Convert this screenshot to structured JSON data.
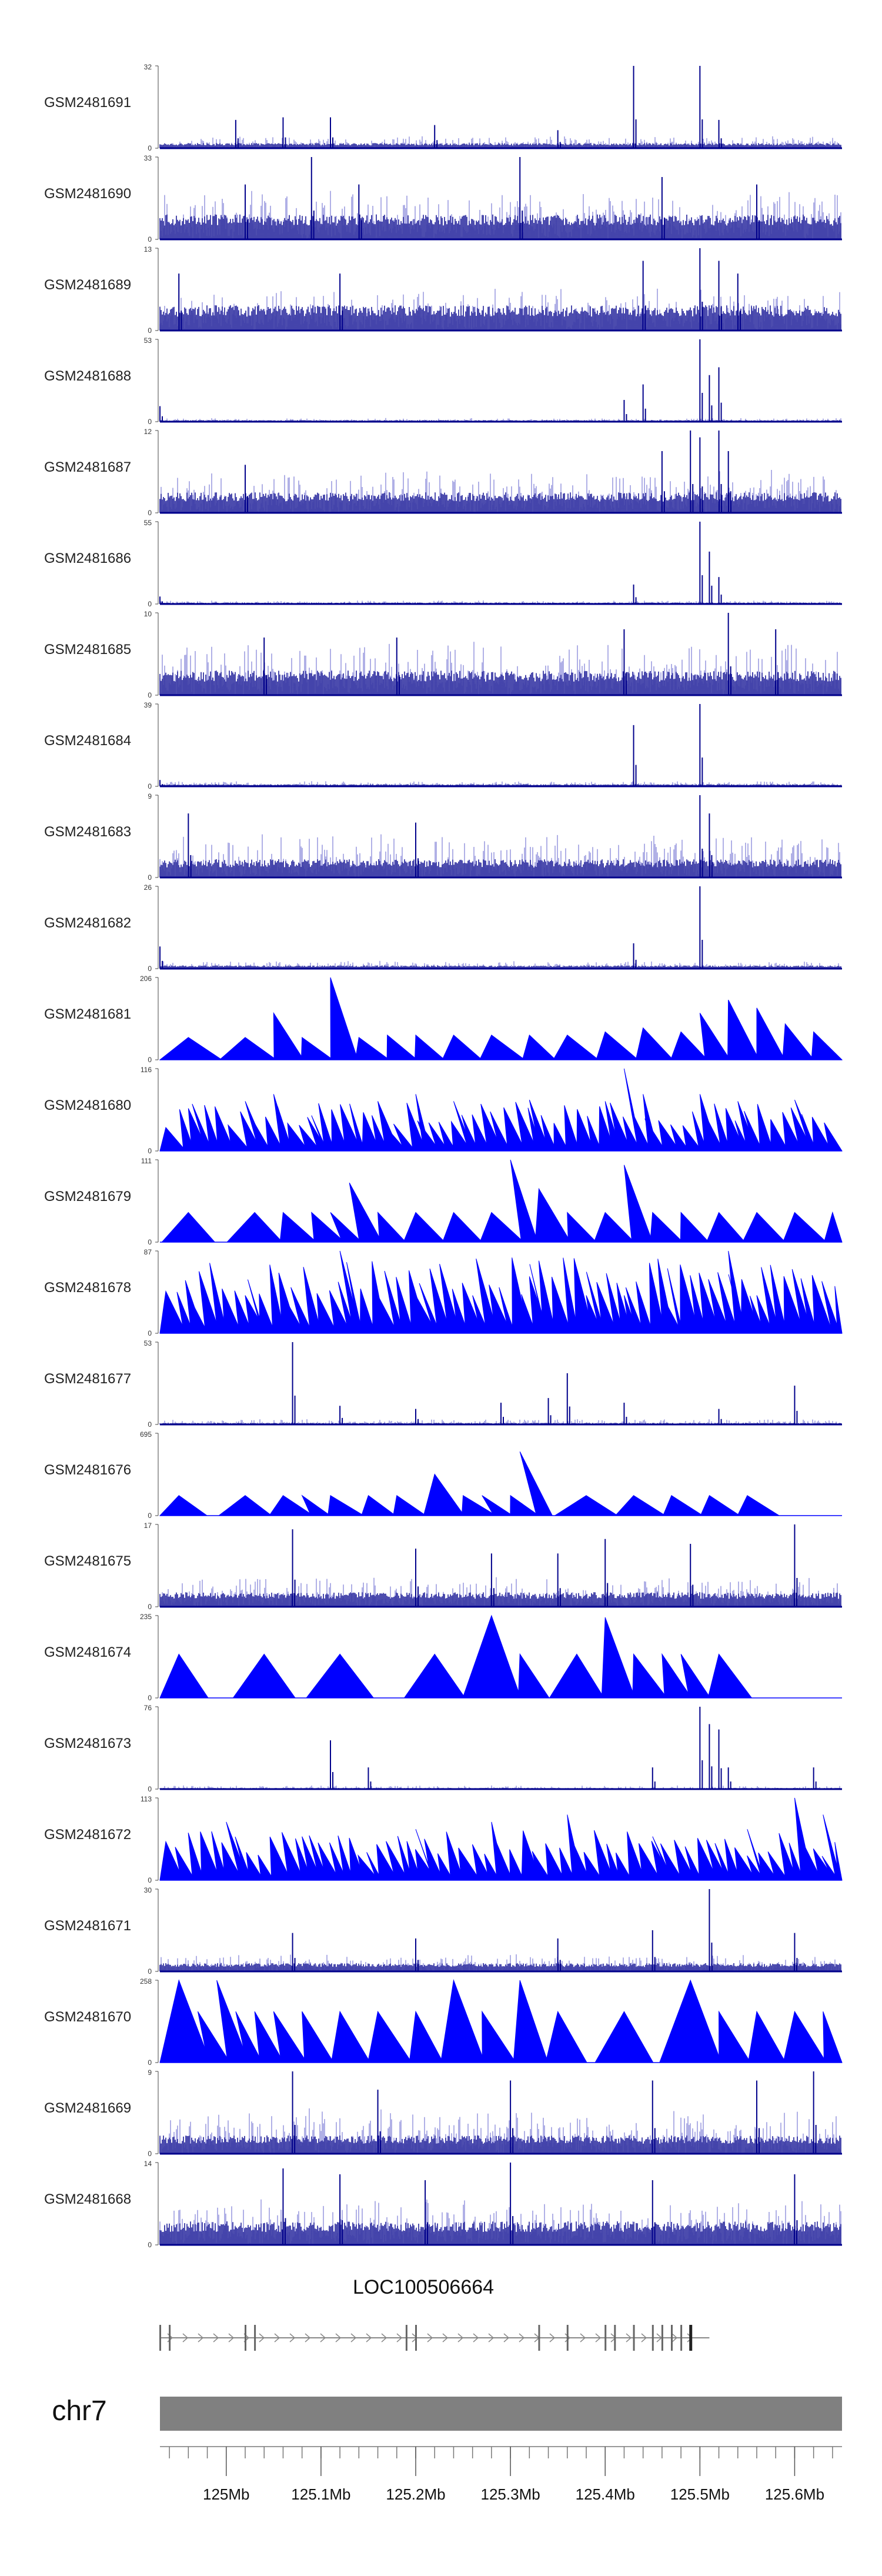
{
  "chart_data": {
    "type": "genome-coverage-tracks",
    "chromosome": "chr7",
    "x_range_mb": [
      124.93,
      125.65
    ],
    "colors": {
      "dark": "#00008b",
      "light": "#7b7bd6",
      "blue": "#0000ff"
    },
    "tracks": [
      {
        "name": "GSM2481691",
        "max": 32,
        "style": "bars",
        "base": 2,
        "noise": 4,
        "peaks": [
          [
            125.01,
            11
          ],
          [
            125.06,
            12
          ],
          [
            125.11,
            12
          ],
          [
            125.22,
            9
          ],
          [
            125.35,
            7
          ],
          [
            125.43,
            32
          ],
          [
            125.5,
            32
          ],
          [
            125.52,
            11
          ]
        ]
      },
      {
        "name": "GSM2481690",
        "max": 33,
        "style": "bars",
        "base": 10,
        "noise": 16,
        "peaks": [
          [
            125.02,
            22
          ],
          [
            125.09,
            33
          ],
          [
            125.14,
            22
          ],
          [
            125.31,
            33
          ],
          [
            125.46,
            25
          ],
          [
            125.56,
            22
          ]
        ]
      },
      {
        "name": "GSM2481689",
        "max": 13,
        "style": "bars",
        "base": 4,
        "noise": 5,
        "peaks": [
          [
            124.95,
            9
          ],
          [
            125.12,
            9
          ],
          [
            125.44,
            11
          ],
          [
            125.5,
            13
          ],
          [
            125.52,
            11
          ],
          [
            125.54,
            9
          ]
        ]
      },
      {
        "name": "GSM2481688",
        "max": 53,
        "style": "bars",
        "base": 1,
        "noise": 2,
        "peaks": [
          [
            124.93,
            10
          ],
          [
            125.42,
            14
          ],
          [
            125.44,
            24
          ],
          [
            125.5,
            53
          ],
          [
            125.51,
            30
          ],
          [
            125.52,
            35
          ]
        ]
      },
      {
        "name": "GSM2481687",
        "max": 12,
        "style": "bars",
        "base": 3,
        "noise": 5,
        "peaks": [
          [
            125.02,
            7
          ],
          [
            125.46,
            9
          ],
          [
            125.49,
            12
          ],
          [
            125.5,
            11
          ],
          [
            125.52,
            12
          ],
          [
            125.53,
            9
          ]
        ]
      },
      {
        "name": "GSM2481686",
        "max": 55,
        "style": "bars",
        "base": 1,
        "noise": 2,
        "peaks": [
          [
            124.93,
            5
          ],
          [
            125.43,
            13
          ],
          [
            125.5,
            55
          ],
          [
            125.51,
            35
          ],
          [
            125.52,
            18
          ]
        ]
      },
      {
        "name": "GSM2481685",
        "max": 10,
        "style": "bars",
        "base": 3,
        "noise": 5,
        "peaks": [
          [
            125.04,
            7
          ],
          [
            125.18,
            7
          ],
          [
            125.42,
            8
          ],
          [
            125.53,
            10
          ],
          [
            125.58,
            8
          ]
        ]
      },
      {
        "name": "GSM2481684",
        "max": 39,
        "style": "bars",
        "base": 1,
        "noise": 2,
        "peaks": [
          [
            124.93,
            3
          ],
          [
            125.43,
            29
          ],
          [
            125.5,
            39
          ]
        ]
      },
      {
        "name": "GSM2481683",
        "max": 9,
        "style": "bars",
        "base": 2,
        "noise": 4,
        "peaks": [
          [
            124.96,
            7
          ],
          [
            125.2,
            6
          ],
          [
            125.5,
            9
          ],
          [
            125.51,
            7
          ]
        ]
      },
      {
        "name": "GSM2481682",
        "max": 26,
        "style": "bars",
        "base": 1,
        "noise": 2,
        "peaks": [
          [
            124.93,
            7
          ],
          [
            125.43,
            8
          ],
          [
            125.5,
            26
          ]
        ]
      },
      {
        "name": "GSM2481681",
        "max": 206,
        "style": "tri",
        "peaks": [
          [
            124.96,
            56
          ],
          [
            125.02,
            56
          ],
          [
            125.05,
            117
          ],
          [
            125.08,
            56
          ],
          [
            125.11,
            206
          ],
          [
            125.14,
            56
          ],
          [
            125.17,
            62
          ],
          [
            125.2,
            62
          ],
          [
            125.24,
            62
          ],
          [
            125.28,
            62
          ],
          [
            125.32,
            62
          ],
          [
            125.36,
            62
          ],
          [
            125.4,
            70
          ],
          [
            125.44,
            80
          ],
          [
            125.48,
            70
          ],
          [
            125.5,
            117
          ],
          [
            125.53,
            150
          ],
          [
            125.56,
            130
          ],
          [
            125.59,
            90
          ],
          [
            125.62,
            70
          ]
        ]
      },
      {
        "name": "GSM2481680",
        "max": 116,
        "style": "tri",
        "density": 60,
        "peaks": [
          [
            124.96,
            60
          ],
          [
            125.02,
            70
          ],
          [
            125.05,
            80
          ],
          [
            125.09,
            50
          ],
          [
            125.16,
            70
          ],
          [
            125.2,
            80
          ],
          [
            125.24,
            70
          ],
          [
            125.32,
            72
          ],
          [
            125.4,
            70
          ],
          [
            125.42,
            116
          ],
          [
            125.44,
            80
          ],
          [
            125.5,
            80
          ],
          [
            125.54,
            70
          ],
          [
            125.6,
            72
          ]
        ]
      },
      {
        "name": "GSM2481679",
        "max": 111,
        "style": "tri",
        "peaks": [
          [
            124.96,
            40
          ],
          [
            125.03,
            40
          ],
          [
            125.06,
            40
          ],
          [
            125.09,
            40
          ],
          [
            125.11,
            40
          ],
          [
            125.13,
            80
          ],
          [
            125.16,
            40
          ],
          [
            125.2,
            40
          ],
          [
            125.24,
            40
          ],
          [
            125.28,
            40
          ],
          [
            125.3,
            111
          ],
          [
            125.33,
            72
          ],
          [
            125.36,
            40
          ],
          [
            125.4,
            40
          ],
          [
            125.42,
            104
          ],
          [
            125.45,
            40
          ],
          [
            125.48,
            40
          ],
          [
            125.52,
            40
          ],
          [
            125.56,
            40
          ],
          [
            125.6,
            40
          ],
          [
            125.64,
            40
          ]
        ]
      },
      {
        "name": "GSM2481678",
        "max": 87,
        "style": "tri",
        "density": 70,
        "peaks": [
          [
            124.96,
            40
          ],
          [
            125.02,
            40
          ],
          [
            125.06,
            40
          ],
          [
            125.12,
            87
          ],
          [
            125.16,
            40
          ],
          [
            125.2,
            40
          ],
          [
            125.26,
            40
          ],
          [
            125.32,
            60
          ],
          [
            125.38,
            40
          ],
          [
            125.42,
            40
          ],
          [
            125.46,
            40
          ],
          [
            125.53,
            87
          ],
          [
            125.56,
            40
          ],
          [
            125.62,
            40
          ]
        ]
      },
      {
        "name": "GSM2481677",
        "max": 53,
        "style": "bars",
        "base": 1,
        "noise": 3,
        "peaks": [
          [
            125.07,
            53
          ],
          [
            125.12,
            12
          ],
          [
            125.2,
            10
          ],
          [
            125.29,
            14
          ],
          [
            125.34,
            17
          ],
          [
            125.36,
            33
          ],
          [
            125.42,
            14
          ],
          [
            125.52,
            10
          ],
          [
            125.6,
            25
          ]
        ]
      },
      {
        "name": "GSM2481676",
        "max": 695,
        "style": "tri",
        "peaks": [
          [
            124.95,
            170
          ],
          [
            125.02,
            170
          ],
          [
            125.06,
            170
          ],
          [
            125.08,
            170
          ],
          [
            125.11,
            170
          ],
          [
            125.15,
            170
          ],
          [
            125.18,
            170
          ],
          [
            125.22,
            350
          ],
          [
            125.25,
            170
          ],
          [
            125.27,
            170
          ],
          [
            125.3,
            170
          ],
          [
            125.31,
            540
          ],
          [
            125.38,
            170
          ],
          [
            125.43,
            170
          ],
          [
            125.47,
            170
          ],
          [
            125.51,
            170
          ],
          [
            125.55,
            170
          ]
        ]
      },
      {
        "name": "GSM2481675",
        "max": 17,
        "style": "bars",
        "base": 3,
        "noise": 5,
        "peaks": [
          [
            125.07,
            16
          ],
          [
            125.2,
            12
          ],
          [
            125.28,
            11
          ],
          [
            125.35,
            11
          ],
          [
            125.4,
            14
          ],
          [
            125.49,
            13
          ],
          [
            125.6,
            17
          ]
        ]
      },
      {
        "name": "GSM2481674",
        "max": 235,
        "style": "tri",
        "peaks": [
          [
            124.95,
            125
          ],
          [
            125.04,
            125
          ],
          [
            125.12,
            125
          ],
          [
            125.22,
            125
          ],
          [
            125.28,
            235
          ],
          [
            125.31,
            125
          ],
          [
            125.37,
            125
          ],
          [
            125.4,
            230
          ],
          [
            125.43,
            125
          ],
          [
            125.46,
            125
          ],
          [
            125.48,
            125
          ],
          [
            125.52,
            125
          ]
        ]
      },
      {
        "name": "GSM2481673",
        "max": 76,
        "style": "bars",
        "base": 1,
        "noise": 3,
        "peaks": [
          [
            125.11,
            45
          ],
          [
            125.15,
            20
          ],
          [
            125.45,
            20
          ],
          [
            125.5,
            76
          ],
          [
            125.51,
            60
          ],
          [
            125.52,
            55
          ],
          [
            125.53,
            20
          ],
          [
            125.62,
            20
          ]
        ]
      },
      {
        "name": "GSM2481672",
        "max": 113,
        "style": "tri",
        "density": 60,
        "peaks": [
          [
            125.0,
            80
          ],
          [
            125.08,
            60
          ],
          [
            125.2,
            70
          ],
          [
            125.28,
            80
          ],
          [
            125.36,
            90
          ],
          [
            125.45,
            60
          ],
          [
            125.55,
            70
          ],
          [
            125.6,
            113
          ],
          [
            125.63,
            90
          ]
        ]
      },
      {
        "name": "GSM2481671",
        "max": 30,
        "style": "bars",
        "base": 3,
        "noise": 5,
        "peaks": [
          [
            125.07,
            14
          ],
          [
            125.2,
            12
          ],
          [
            125.35,
            12
          ],
          [
            125.45,
            15
          ],
          [
            125.51,
            30
          ],
          [
            125.6,
            14
          ]
        ]
      },
      {
        "name": "GSM2481670",
        "max": 258,
        "style": "tri",
        "peaks": [
          [
            124.95,
            258
          ],
          [
            124.97,
            160
          ],
          [
            124.99,
            258
          ],
          [
            125.01,
            160
          ],
          [
            125.03,
            160
          ],
          [
            125.05,
            160
          ],
          [
            125.08,
            160
          ],
          [
            125.12,
            160
          ],
          [
            125.16,
            160
          ],
          [
            125.2,
            160
          ],
          [
            125.24,
            258
          ],
          [
            125.27,
            160
          ],
          [
            125.31,
            258
          ],
          [
            125.35,
            160
          ],
          [
            125.42,
            160
          ],
          [
            125.49,
            258
          ],
          [
            125.52,
            160
          ],
          [
            125.56,
            160
          ],
          [
            125.6,
            160
          ],
          [
            125.63,
            160
          ]
        ]
      },
      {
        "name": "GSM2481669",
        "max": 9,
        "style": "bars",
        "base": 2,
        "noise": 4,
        "peaks": [
          [
            125.07,
            9
          ],
          [
            125.16,
            7
          ],
          [
            125.3,
            8
          ],
          [
            125.45,
            8
          ],
          [
            125.56,
            8
          ],
          [
            125.62,
            9
          ]
        ]
      },
      {
        "name": "GSM2481668",
        "max": 14,
        "style": "bars",
        "base": 4,
        "noise": 6,
        "peaks": [
          [
            125.06,
            13
          ],
          [
            125.12,
            12
          ],
          [
            125.21,
            11
          ],
          [
            125.3,
            14
          ],
          [
            125.45,
            11
          ],
          [
            125.6,
            12
          ]
        ]
      }
    ],
    "gene": {
      "name": "LOC100506664",
      "range_mb": [
        124.93,
        125.51
      ],
      "exons_mb": [
        124.93,
        124.94,
        125.02,
        125.03,
        125.19,
        125.2,
        125.33,
        125.36,
        125.4,
        125.41,
        125.43,
        125.45,
        125.46,
        125.47,
        125.48,
        125.49
      ]
    },
    "axis": {
      "ticks_mb": [
        125.0,
        125.1,
        125.2,
        125.3,
        125.4,
        125.5,
        125.6
      ],
      "tick_labels": [
        "125Mb",
        "125.1Mb",
        "125.2Mb",
        "125.3Mb",
        "125.4Mb",
        "125.5Mb",
        "125.6Mb"
      ]
    }
  }
}
